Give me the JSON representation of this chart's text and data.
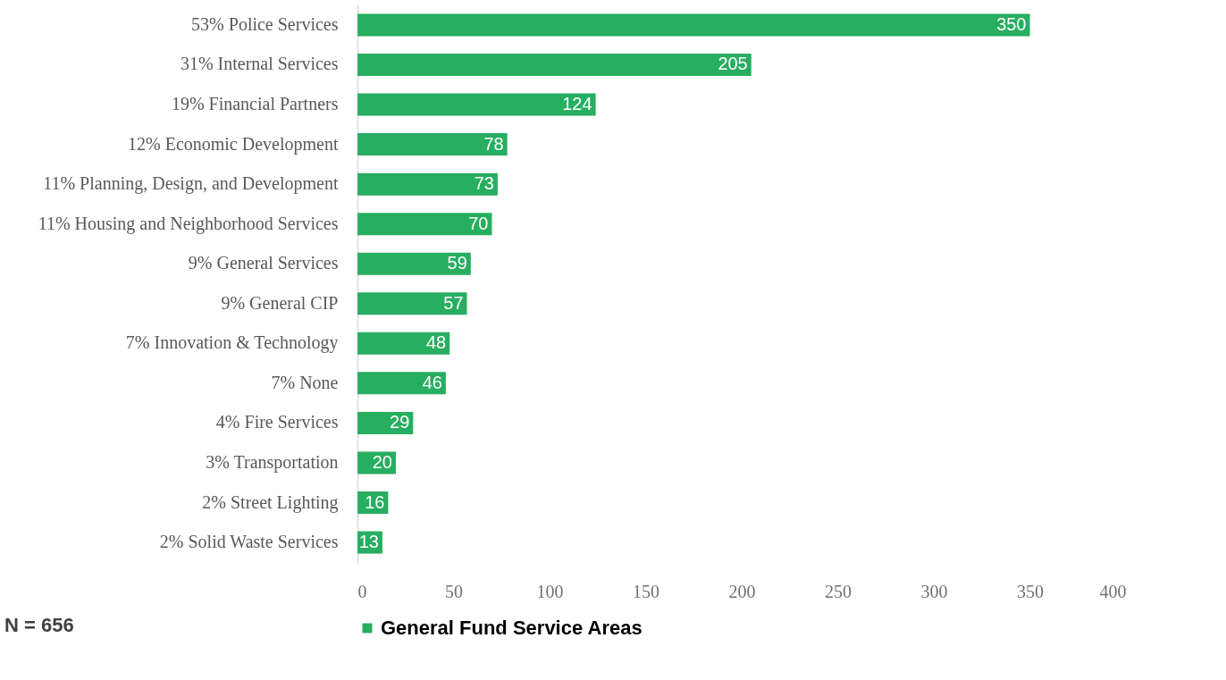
{
  "chart_data": {
    "type": "bar",
    "orientation": "horizontal",
    "categories": [
      "53% Police Services",
      "31% Internal Services",
      "19% Financial Partners",
      "12% Economic Development",
      "11% Planning, Design, and Development",
      "11% Housing and Neighborhood Services",
      "9% General Services",
      "9% General CIP",
      "7% Innovation & Technology",
      "7% None",
      "4% Fire Services",
      "3% Transportation",
      "2% Street Lighting",
      "2% Solid Waste Services"
    ],
    "series": [
      {
        "name": "General Fund Service Areas",
        "color": "#27ae60",
        "values": [
          350,
          205,
          124,
          78,
          73,
          70,
          59,
          57,
          48,
          46,
          29,
          20,
          16,
          13
        ]
      }
    ],
    "xlim": [
      0,
      400
    ],
    "xticks": [
      0,
      50,
      100,
      150,
      200,
      250,
      300,
      350,
      400
    ],
    "data_labels": true,
    "grid": false,
    "legend": "bottom",
    "annotations": [
      "N = 656"
    ]
  }
}
